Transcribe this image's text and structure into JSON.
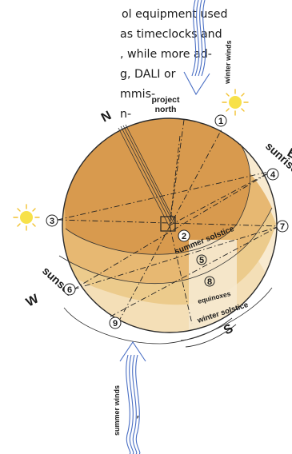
{
  "text_lines": [
    "ol equipment used",
    "as timeclocks and",
    ", while more ad-",
    "g, DALI or",
    "mmis-",
    "n-",
    ","
  ],
  "labels": {
    "project_north": [
      "project",
      "north"
    ],
    "winter_winds": "winter winds",
    "summer_winds": "summer winds",
    "north": "N",
    "east": "E",
    "south": "S",
    "west": "W",
    "sunrise": "sunrise",
    "sunset": "sunset",
    "summer_solstice": "summer solstice",
    "equinoxes": "equinoxes",
    "winter_solstice": "winter solstice"
  },
  "markers": [
    "1",
    "2",
    "3",
    "4",
    "5",
    "6",
    "7",
    "8",
    "9"
  ],
  "colors": {
    "dome_top": "#d89a4e",
    "band_2": "#e7b872",
    "band_3": "#f1d7a5",
    "band_4": "#f8ead0",
    "wind_arrow": "#4a6fc4",
    "sun": "#f7e14a",
    "sun_rays": "#f2c230"
  }
}
